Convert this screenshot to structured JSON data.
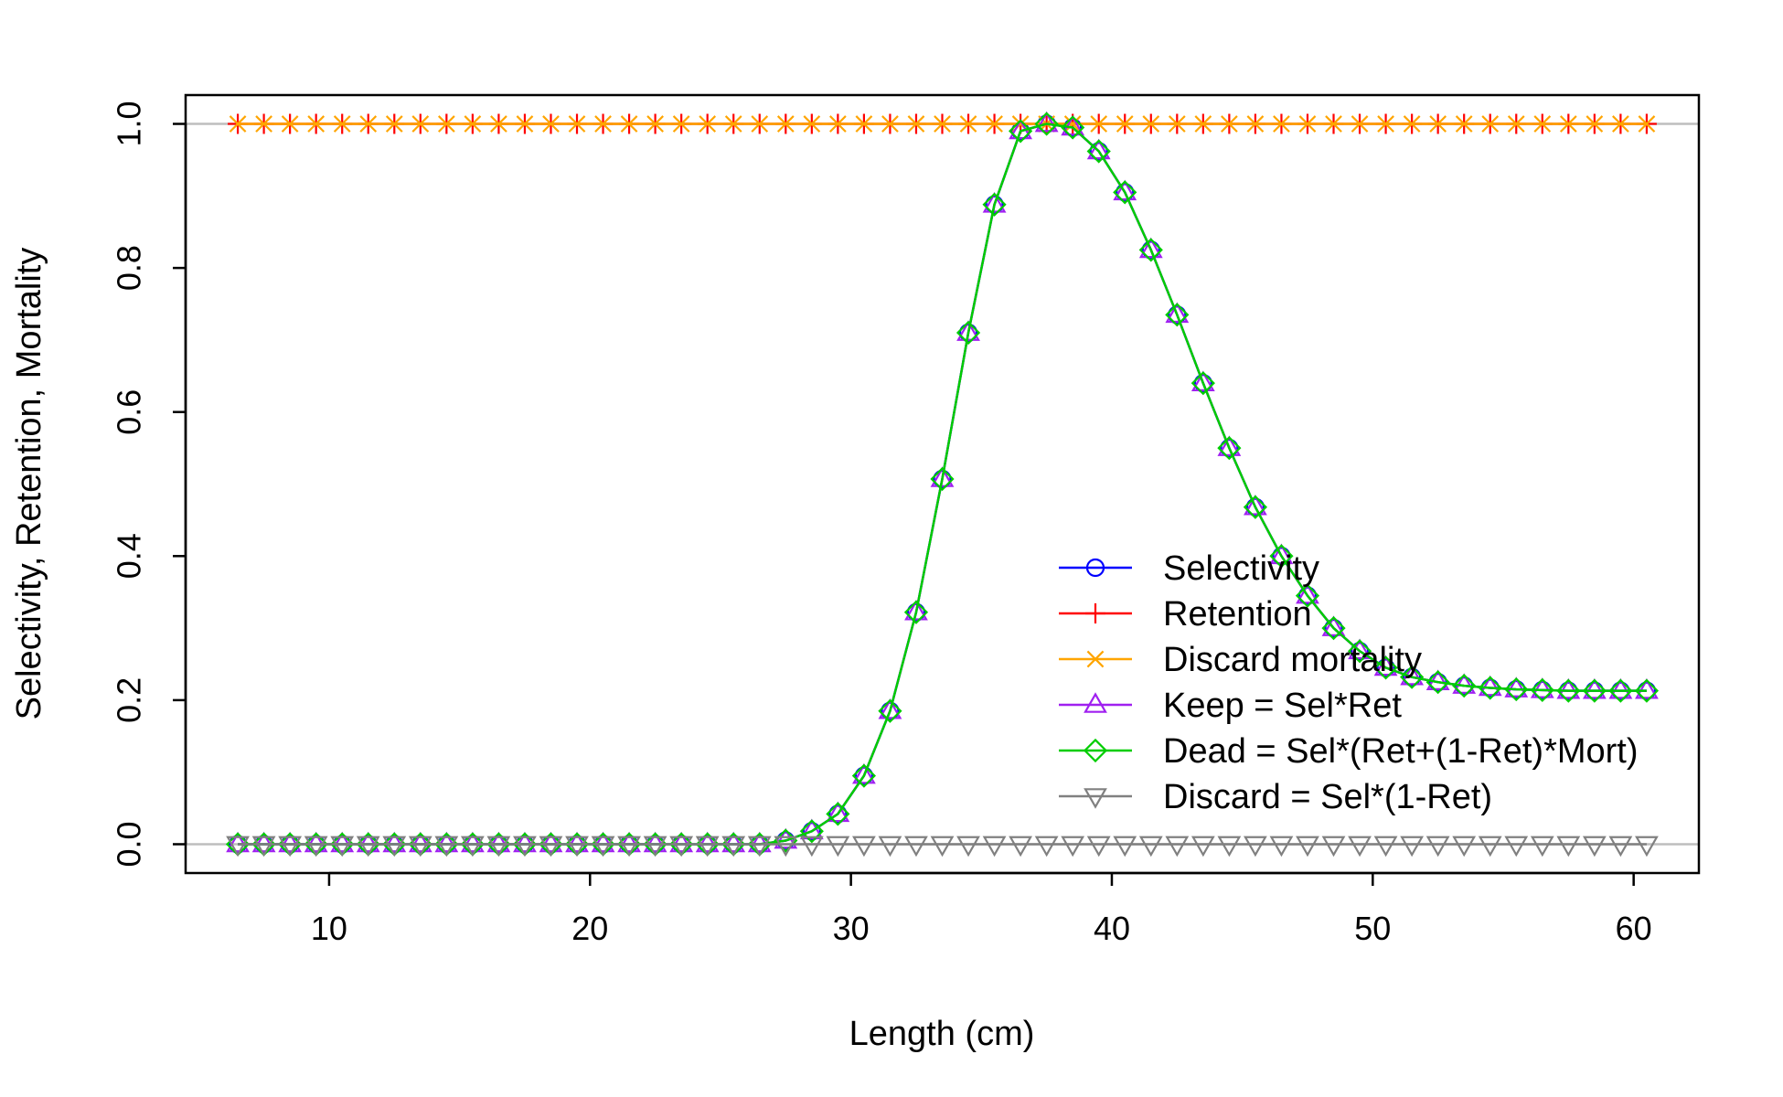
{
  "chart_data": {
    "type": "line",
    "title": "",
    "xlabel": "Length (cm)",
    "ylabel": "Selectivity, Retention, Mortality",
    "xlim": [
      4.5,
      62.5
    ],
    "ylim": [
      -0.04,
      1.04
    ],
    "x_ticks": [
      10,
      20,
      30,
      40,
      50,
      60
    ],
    "x_tick_labels": [
      "10",
      "20",
      "30",
      "40",
      "50",
      "60"
    ],
    "y_ticks": [
      0,
      0.2,
      0.4,
      0.6,
      0.8,
      1.0
    ],
    "y_tick_labels": [
      "0.0",
      "0.2",
      "0.4",
      "0.6",
      "0.8",
      "1.0"
    ],
    "reference_lines": [
      0,
      1
    ],
    "reference_line_color": "#bebebe",
    "grid": false,
    "legend_position": "bottom-right",
    "x": [
      6.5,
      7.5,
      8.5,
      9.5,
      10.5,
      11.5,
      12.5,
      13.5,
      14.5,
      15.5,
      16.5,
      17.5,
      18.5,
      19.5,
      20.5,
      21.5,
      22.5,
      23.5,
      24.5,
      25.5,
      26.5,
      27.5,
      28.5,
      29.5,
      30.5,
      31.5,
      32.5,
      33.5,
      34.5,
      35.5,
      36.5,
      37.5,
      38.5,
      39.5,
      40.5,
      41.5,
      42.5,
      43.5,
      44.5,
      45.5,
      46.5,
      47.5,
      48.5,
      49.5,
      50.5,
      51.5,
      52.5,
      53.5,
      54.5,
      55.5,
      56.5,
      57.5,
      58.5,
      59.5,
      60.5
    ],
    "series": [
      {
        "name": "Selectivity",
        "color": "#0000ff",
        "marker": "circle",
        "values": [
          0,
          0,
          0,
          0,
          0,
          0,
          0,
          0,
          0,
          0,
          0,
          0,
          0,
          0,
          0,
          0,
          0,
          0,
          0,
          0,
          0,
          0.005,
          0.018,
          0.042,
          0.095,
          0.185,
          0.322,
          0.507,
          0.71,
          0.888,
          0.99,
          1.0,
          0.995,
          0.962,
          0.905,
          0.825,
          0.735,
          0.64,
          0.55,
          0.468,
          0.4,
          0.345,
          0.3,
          0.268,
          0.245,
          0.232,
          0.225,
          0.22,
          0.217,
          0.215,
          0.214,
          0.213,
          0.213,
          0.213,
          0.213
        ]
      },
      {
        "name": "Retention",
        "color": "#ff0000",
        "marker": "plus",
        "values": [
          1,
          1,
          1,
          1,
          1,
          1,
          1,
          1,
          1,
          1,
          1,
          1,
          1,
          1,
          1,
          1,
          1,
          1,
          1,
          1,
          1,
          1,
          1,
          1,
          1,
          1,
          1,
          1,
          1,
          1,
          1,
          1,
          1,
          1,
          1,
          1,
          1,
          1,
          1,
          1,
          1,
          1,
          1,
          1,
          1,
          1,
          1,
          1,
          1,
          1,
          1,
          1,
          1,
          1,
          1
        ]
      },
      {
        "name": "Discard mortality",
        "color": "#ffa500",
        "marker": "x",
        "values": [
          1,
          1,
          1,
          1,
          1,
          1,
          1,
          1,
          1,
          1,
          1,
          1,
          1,
          1,
          1,
          1,
          1,
          1,
          1,
          1,
          1,
          1,
          1,
          1,
          1,
          1,
          1,
          1,
          1,
          1,
          1,
          1,
          1,
          1,
          1,
          1,
          1,
          1,
          1,
          1,
          1,
          1,
          1,
          1,
          1,
          1,
          1,
          1,
          1,
          1,
          1,
          1,
          1,
          1,
          1
        ]
      },
      {
        "name": "Keep = Sel*Ret",
        "color": "#a020f0",
        "marker": "triangle-up",
        "values": [
          0,
          0,
          0,
          0,
          0,
          0,
          0,
          0,
          0,
          0,
          0,
          0,
          0,
          0,
          0,
          0,
          0,
          0,
          0,
          0,
          0,
          0.005,
          0.018,
          0.042,
          0.095,
          0.185,
          0.322,
          0.507,
          0.71,
          0.888,
          0.99,
          1.0,
          0.995,
          0.962,
          0.905,
          0.825,
          0.735,
          0.64,
          0.55,
          0.468,
          0.4,
          0.345,
          0.3,
          0.268,
          0.245,
          0.232,
          0.225,
          0.22,
          0.217,
          0.215,
          0.214,
          0.213,
          0.213,
          0.213,
          0.213
        ]
      },
      {
        "name": "Dead = Sel*(Ret+(1-Ret)*Mort)",
        "color": "#00cd00",
        "marker": "diamond",
        "values": [
          0,
          0,
          0,
          0,
          0,
          0,
          0,
          0,
          0,
          0,
          0,
          0,
          0,
          0,
          0,
          0,
          0,
          0,
          0,
          0,
          0,
          0.005,
          0.018,
          0.042,
          0.095,
          0.185,
          0.322,
          0.507,
          0.71,
          0.888,
          0.99,
          1.0,
          0.995,
          0.962,
          0.905,
          0.825,
          0.735,
          0.64,
          0.55,
          0.468,
          0.4,
          0.345,
          0.3,
          0.268,
          0.245,
          0.232,
          0.225,
          0.22,
          0.217,
          0.215,
          0.214,
          0.213,
          0.213,
          0.213,
          0.213
        ]
      },
      {
        "name": "Discard = Sel*(1-Ret)",
        "color": "#808080",
        "marker": "triangle-down",
        "values": [
          0,
          0,
          0,
          0,
          0,
          0,
          0,
          0,
          0,
          0,
          0,
          0,
          0,
          0,
          0,
          0,
          0,
          0,
          0,
          0,
          0,
          0,
          0,
          0,
          0,
          0,
          0,
          0,
          0,
          0,
          0,
          0,
          0,
          0,
          0,
          0,
          0,
          0,
          0,
          0,
          0,
          0,
          0,
          0,
          0,
          0,
          0,
          0,
          0,
          0,
          0,
          0,
          0,
          0,
          0
        ]
      }
    ]
  }
}
